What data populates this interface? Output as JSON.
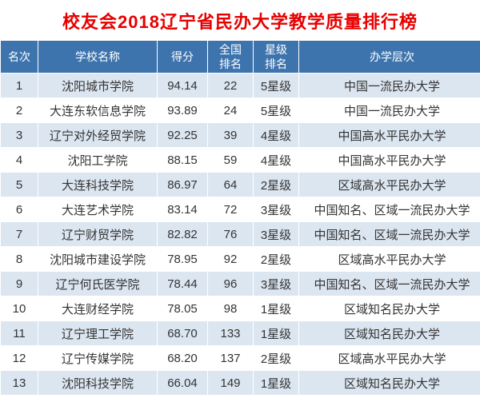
{
  "colors": {
    "title": "#e60000",
    "header_bg": "#3e74ad",
    "header_text": "#ffffff",
    "row_alt_bg": "#dce6f1",
    "row_bg": "#ffffff",
    "cell_text": "#333333"
  },
  "chart_data": {
    "type": "table",
    "title": "校友会2018辽宁省民办大学教学质量排行榜",
    "columns": [
      "名次",
      "学校名称",
      "得分",
      "全国\n排名",
      "星级\n排名",
      "办学层次"
    ],
    "rows": [
      [
        "1",
        "沈阳城市学院",
        "94.14",
        "22",
        "5星级",
        "中国一流民办大学"
      ],
      [
        "2",
        "大连东软信息学院",
        "93.89",
        "24",
        "5星级",
        "中国一流民办大学"
      ],
      [
        "3",
        "辽宁对外经贸学院",
        "92.25",
        "39",
        "4星级",
        "中国高水平民办大学"
      ],
      [
        "4",
        "沈阳工学院",
        "88.15",
        "59",
        "4星级",
        "中国高水平民办大学"
      ],
      [
        "5",
        "大连科技学院",
        "86.97",
        "64",
        "2星级",
        "区域高水平民办大学"
      ],
      [
        "6",
        "大连艺术学院",
        "83.14",
        "72",
        "3星级",
        "中国知名、区域一流民办大学"
      ],
      [
        "7",
        "辽宁财贸学院",
        "82.82",
        "76",
        "3星级",
        "中国知名、区域一流民办大学"
      ],
      [
        "8",
        "沈阳城市建设学院",
        "78.95",
        "92",
        "2星级",
        "区域高水平民办大学"
      ],
      [
        "9",
        "辽宁何氏医学院",
        "78.44",
        "96",
        "3星级",
        "中国知名、区域一流民办大学"
      ],
      [
        "10",
        "大连财经学院",
        "78.05",
        "98",
        "1星级",
        "区域知名民办大学"
      ],
      [
        "11",
        "辽宁理工学院",
        "68.70",
        "133",
        "1星级",
        "区域知名民办大学"
      ],
      [
        "12",
        "辽宁传媒学院",
        "68.20",
        "137",
        "2星级",
        "区域高水平民办大学"
      ],
      [
        "13",
        "沈阳科技学院",
        "66.04",
        "149",
        "1星级",
        "区域知名民办大学"
      ]
    ]
  }
}
